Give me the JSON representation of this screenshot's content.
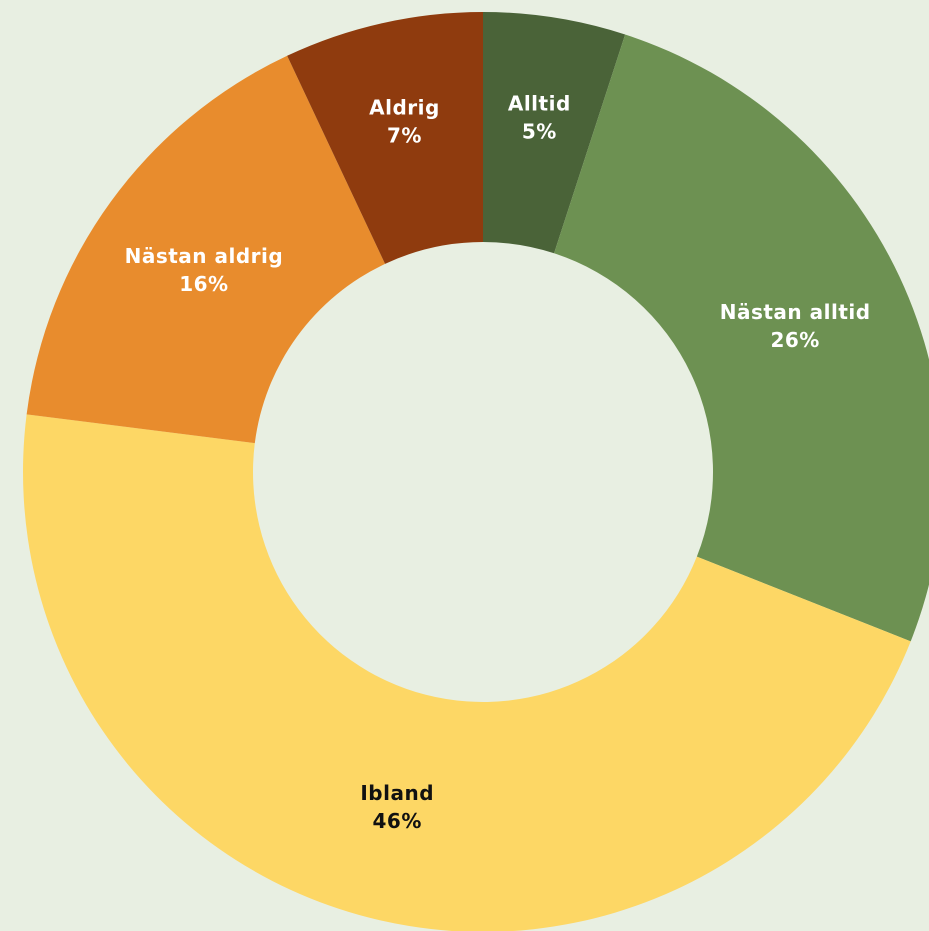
{
  "chart_data": {
    "type": "pie",
    "variant": "donut",
    "title": "",
    "legend": "none",
    "categories": [
      "Alltid",
      "Nästan alltid",
      "Ibland",
      "Nästan aldrig",
      "Aldrig"
    ],
    "values": [
      5,
      26,
      46,
      16,
      7
    ],
    "value_labels": [
      "5%",
      "26%",
      "46%",
      "16%",
      "7%"
    ],
    "colors": [
      "#4a6338",
      "#6d9152",
      "#fdd765",
      "#e88c2d",
      "#8f3b0e"
    ],
    "label_colors": [
      "#ffffff",
      "#ffffff",
      "#111111",
      "#ffffff",
      "#ffffff"
    ],
    "start": "12 o'clock",
    "direction": "clockwise"
  },
  "background_color": "#e8efe2"
}
